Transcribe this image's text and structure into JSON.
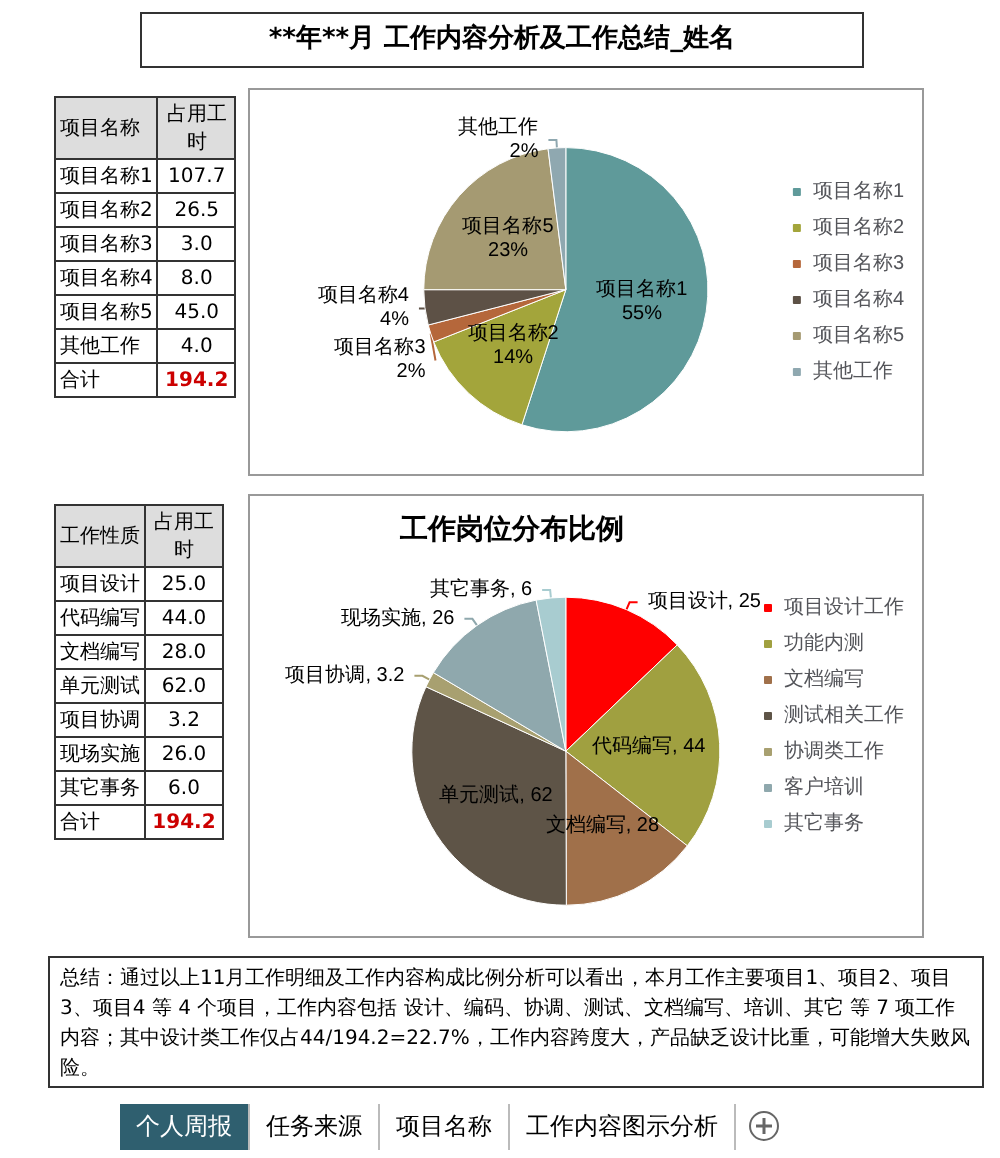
{
  "chart_data": [
    {
      "type": "other",
      "title": "**年**月 工作内容分析及工作总结_姓名",
      "annotations": [
        "项目名称",
        "占用工时",
        "项目名称1",
        "107.7",
        "项目名称2",
        "26.5",
        "项目名称3",
        "3.0",
        "项目名称4",
        "8.0",
        "项目名称5",
        "45.0",
        "其他工作",
        "4.0",
        "合计",
        "194.2"
      ]
    },
    {
      "type": "pie",
      "legend": "right",
      "categories": [
        "项目名称1",
        "项目名称2",
        "项目名称3",
        "项目名称4",
        "项目名称5",
        "其他工作"
      ],
      "values": [
        55,
        14,
        2,
        4,
        23,
        2
      ],
      "colors": [
        "#5f9a9a",
        "#a3a53b",
        "#b5673b",
        "#5d5146",
        "#a59a72",
        "#8fa8b0"
      ],
      "value_labels": [
        "项目名称1\n55%",
        "项目名称2\n14%",
        "项目名称3\n2%",
        "项目名称4\n4%",
        "项目名称5\n23%",
        "其他工作\n2%"
      ]
    },
    {
      "type": "other",
      "annotations": [
        "工作性质",
        "占用工时",
        "项目设计",
        "25.0",
        "代码编写",
        "44.0",
        "文档编写",
        "28.0",
        "单元测试",
        "62.0",
        "项目协调",
        "3.2",
        "现场实施",
        "26.0",
        "其它事务",
        "6.0",
        "合计",
        "194.2"
      ]
    },
    {
      "type": "pie",
      "title": "工作岗位分布比例",
      "legend": "right",
      "categories": [
        "项目设计工作",
        "功能内测",
        "文档编写",
        "测试相关工作",
        "协调类工作",
        "客户培训",
        "其它事务"
      ],
      "values": [
        25.0,
        44.0,
        28.0,
        62.0,
        3.2,
        26.0,
        6.0
      ],
      "colors": [
        "#ff0000",
        "#a0a040",
        "#a0704a",
        "#5e5447",
        "#a8a070",
        "#8fa8ad",
        "#a8ccd0"
      ],
      "value_labels": [
        "项目设计, 25",
        "代码编写, 44",
        "文档编写, 28",
        "单元测试, 62",
        "项目协调, 3.2",
        "现场实施, 26",
        "其它事务, 6"
      ]
    },
    {
      "type": "other",
      "annotations": [
        "总结：通过以上11月工作明细及工作内容构成比例分析可以看出，本月工作主要项目1、项目2、项目3、项目4 等 4 个项目，工作内容包括 设计、编码、协调、测试、文档编写、培训、其它 等 7 项工作内容；其中设计类工作仅占44/194.2=22.7%，工作内容跨度大，产品缺乏设计比重，可能增大失败风险。"
      ]
    },
    {
      "type": "other",
      "annotations": [
        "个人周报",
        "任务来源",
        "项目名称",
        "工作内容图示分析"
      ]
    }
  ]
}
